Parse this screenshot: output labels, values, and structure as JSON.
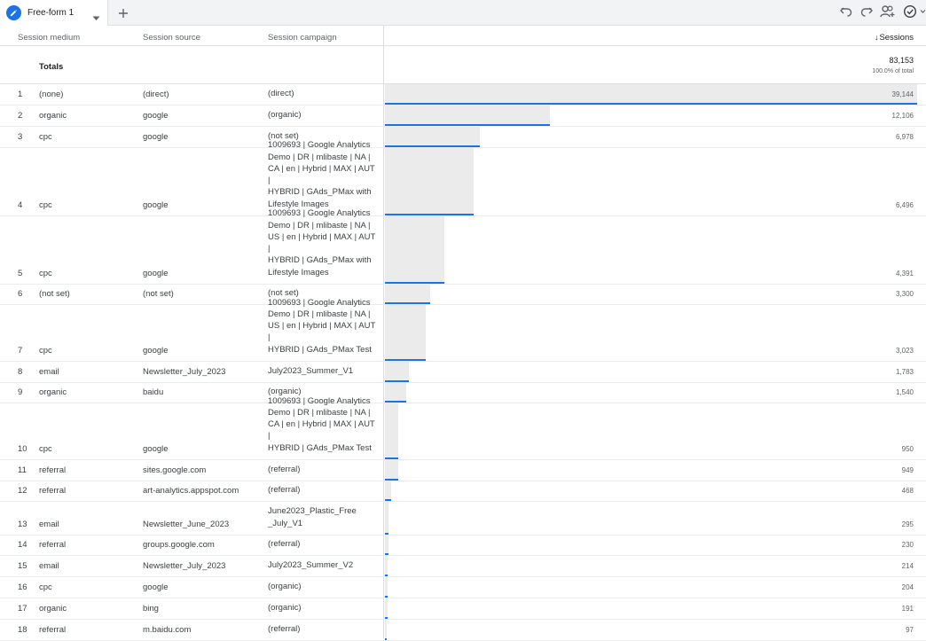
{
  "tabs": [
    {
      "label": "Free-form 1"
    }
  ],
  "columns": {
    "medium": "Session medium",
    "source": "Session source",
    "campaign": "Session campaign",
    "sessions": "Sessions"
  },
  "totals": {
    "label": "Totals",
    "value": "83,153",
    "percent": "100.0% of total"
  },
  "rows": [
    {
      "num": "1",
      "medium": "(none)",
      "source": "(direct)",
      "campaign": "(direct)",
      "sessions": "39,144",
      "share": 0.4707
    },
    {
      "num": "2",
      "medium": "organic",
      "source": "google",
      "campaign": "(organic)",
      "sessions": "12,106",
      "share": 0.1456
    },
    {
      "num": "3",
      "medium": "cpc",
      "source": "google",
      "campaign": "(not set)",
      "sessions": "6,978",
      "share": 0.0839
    },
    {
      "num": "4",
      "medium": "cpc",
      "source": "google",
      "campaign": "1009693 | Google Analytics\nDemo | DR | mlibaste | NA |\nCA | en | Hybrid | MAX | AUT |\nHYBRID | GAds_PMax with\nLifestyle Images",
      "sessions": "6,496",
      "share": 0.0781
    },
    {
      "num": "5",
      "medium": "cpc",
      "source": "google",
      "campaign": "1009693 | Google Analytics\nDemo | DR | mlibaste | NA |\nUS | en | Hybrid | MAX | AUT |\nHYBRID | GAds_PMax with\nLifestyle Images",
      "sessions": "4,391",
      "share": 0.0528
    },
    {
      "num": "6",
      "medium": "(not set)",
      "source": "(not set)",
      "campaign": "(not set)",
      "sessions": "3,300",
      "share": 0.0397
    },
    {
      "num": "7",
      "medium": "cpc",
      "source": "google",
      "campaign": "1009693 | Google Analytics\nDemo | DR | mlibaste | NA |\nUS | en | Hybrid | MAX | AUT |\nHYBRID | GAds_PMax Test",
      "sessions": "3,023",
      "share": 0.0364
    },
    {
      "num": "8",
      "medium": "email",
      "source": "Newsletter_July_2023",
      "campaign": "July2023_Summer_V1",
      "sessions": "1,783",
      "share": 0.0214
    },
    {
      "num": "9",
      "medium": "organic",
      "source": "baidu",
      "campaign": "(organic)",
      "sessions": "1,540",
      "share": 0.0185
    },
    {
      "num": "10",
      "medium": "cpc",
      "source": "google",
      "campaign": "1009693 | Google Analytics\nDemo | DR | mlibaste | NA |\nCA | en | Hybrid | MAX | AUT |\nHYBRID | GAds_PMax Test",
      "sessions": "950",
      "share": 0.0114
    },
    {
      "num": "11",
      "medium": "referral",
      "source": "sites.google.com",
      "campaign": "(referral)",
      "sessions": "949",
      "share": 0.0114
    },
    {
      "num": "12",
      "medium": "referral",
      "source": "art-analytics.appspot.com",
      "campaign": "(referral)",
      "sessions": "468",
      "share": 0.0056
    },
    {
      "num": "13",
      "medium": "email",
      "source": "Newsletter_June_2023",
      "campaign": "June2023_Plastic_Free\n_July_V1",
      "sessions": "295",
      "share": 0.0035
    },
    {
      "num": "14",
      "medium": "referral",
      "source": "groups.google.com",
      "campaign": "(referral)",
      "sessions": "230",
      "share": 0.0028
    },
    {
      "num": "15",
      "medium": "email",
      "source": "Newsletter_July_2023",
      "campaign": "July2023_Summer_V2",
      "sessions": "214",
      "share": 0.0026
    },
    {
      "num": "16",
      "medium": "cpc",
      "source": "google",
      "campaign": "(organic)",
      "sessions": "204",
      "share": 0.0025
    },
    {
      "num": "17",
      "medium": "organic",
      "source": "bing",
      "campaign": "(organic)",
      "sessions": "191",
      "share": 0.0023
    },
    {
      "num": "18",
      "medium": "referral",
      "source": "m.baidu.com",
      "campaign": "(referral)",
      "sessions": "97",
      "share": 0.0012
    }
  ],
  "colors": {
    "accent": "#1a73e8",
    "bar": "#ebebeb"
  }
}
